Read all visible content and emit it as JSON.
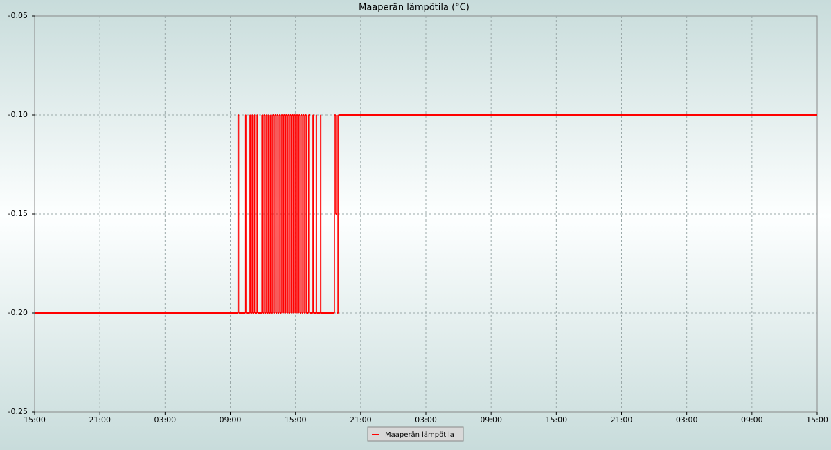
{
  "chart_data": {
    "type": "step",
    "title": "Maaperän lämpötila (°C)",
    "series": [
      {
        "name": "Maaperän lämpötila",
        "color": "#ff0000",
        "x": [
          0,
          18.7,
          18.78,
          19.4,
          19.45,
          19.8,
          19.85,
          20.0,
          20.05,
          20.2,
          20.25,
          20.45,
          20.5,
          20.9,
          21.0,
          21.1,
          21.2,
          21.3,
          21.4,
          21.5,
          21.6,
          21.7,
          21.8,
          21.9,
          22.0,
          22.1,
          22.2,
          22.3,
          22.4,
          22.5,
          22.6,
          22.7,
          22.8,
          22.9,
          23.0,
          23.1,
          23.2,
          23.3,
          23.4,
          23.5,
          23.6,
          23.7,
          23.8,
          23.9,
          24.0,
          24.1,
          24.2,
          24.3,
          24.4,
          24.5,
          24.6,
          24.7,
          24.8,
          24.9,
          25.0,
          25.2,
          25.3,
          25.6,
          25.65,
          25.9,
          25.95,
          26.3,
          26.35,
          27.6,
          27.7,
          27.8,
          27.85,
          27.95
        ],
        "values": [
          -0.2,
          -0.1,
          -0.2,
          -0.1,
          -0.2,
          -0.1,
          -0.2,
          -0.1,
          -0.2,
          -0.1,
          -0.2,
          -0.1,
          -0.2,
          -0.1,
          -0.2,
          -0.1,
          -0.2,
          -0.1,
          -0.2,
          -0.1,
          -0.2,
          -0.1,
          -0.2,
          -0.1,
          -0.2,
          -0.1,
          -0.2,
          -0.1,
          -0.2,
          -0.1,
          -0.2,
          -0.1,
          -0.2,
          -0.1,
          -0.2,
          -0.1,
          -0.2,
          -0.1,
          -0.2,
          -0.1,
          -0.2,
          -0.1,
          -0.2,
          -0.1,
          -0.2,
          -0.1,
          -0.2,
          -0.1,
          -0.2,
          -0.1,
          -0.2,
          -0.1,
          -0.2,
          -0.1,
          -0.2,
          -0.1,
          -0.2,
          -0.1,
          -0.2,
          -0.1,
          -0.2,
          -0.1,
          -0.2,
          -0.1,
          -0.15,
          -0.1,
          -0.2,
          -0.1
        ]
      }
    ],
    "xlim": [
      0,
      72
    ],
    "xticks": [
      {
        "value": 0,
        "label": "15:00"
      },
      {
        "value": 6,
        "label": "21:00"
      },
      {
        "value": 12,
        "label": "03:00"
      },
      {
        "value": 18,
        "label": "09:00"
      },
      {
        "value": 24,
        "label": "15:00"
      },
      {
        "value": 30,
        "label": "21:00"
      },
      {
        "value": 36,
        "label": "03:00"
      },
      {
        "value": 42,
        "label": "09:00"
      },
      {
        "value": 48,
        "label": "15:00"
      },
      {
        "value": 54,
        "label": "21:00"
      },
      {
        "value": 60,
        "label": "03:00"
      },
      {
        "value": 66,
        "label": "09:00"
      },
      {
        "value": 72,
        "label": "15:00"
      }
    ],
    "ylim": [
      -0.25,
      -0.05
    ],
    "yticks": [
      -0.25,
      {
        "value": -0.2,
        "label": "-0.20"
      },
      -0.15,
      {
        "value": -0.1,
        "label": "-0.10"
      },
      -0.05
    ],
    "grid": true
  }
}
